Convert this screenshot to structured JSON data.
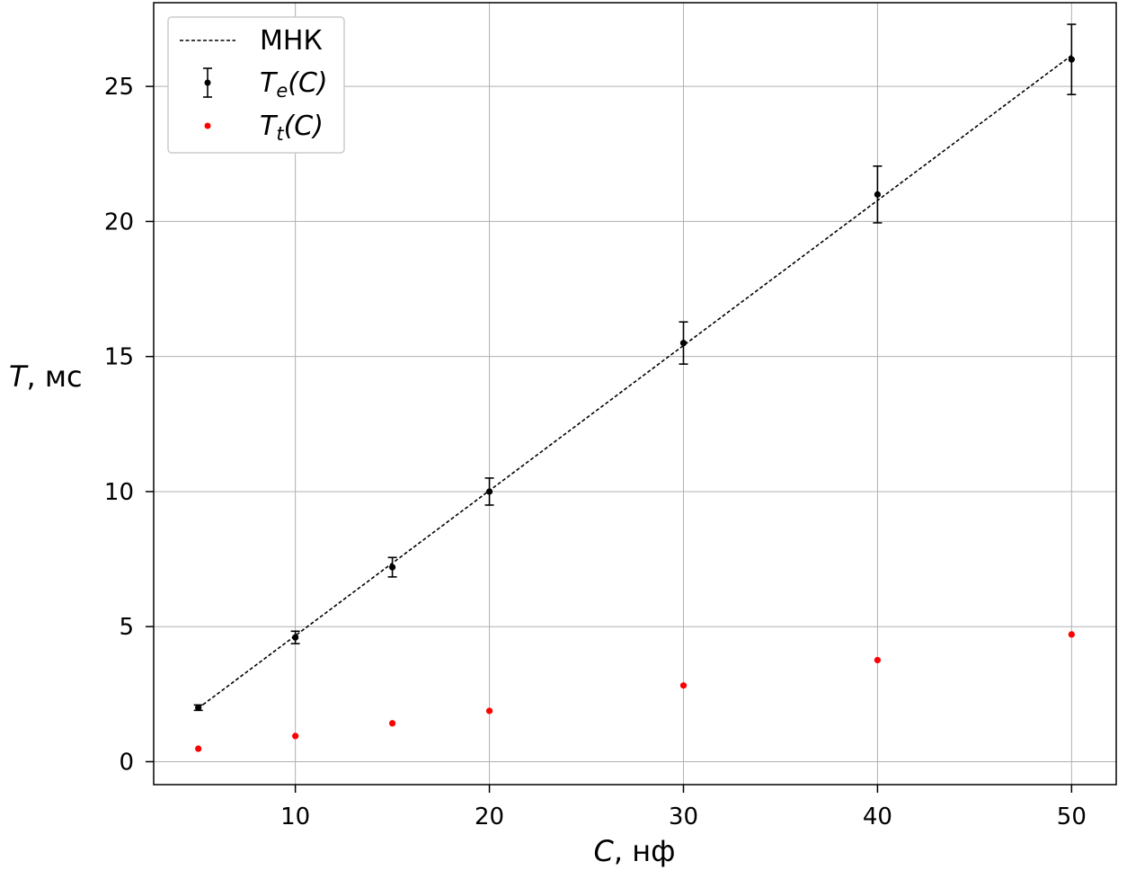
{
  "chart_data": {
    "type": "scatter",
    "title": "",
    "xlabel": {
      "var": "C",
      "unit": ", нф"
    },
    "ylabel": {
      "var": "T",
      "unit": ", мс"
    },
    "xlim": [
      2.7,
      52.3
    ],
    "ylim": [
      -0.85,
      28.1
    ],
    "xticks": [
      10,
      20,
      30,
      40,
      50
    ],
    "yticks": [
      0,
      5,
      10,
      15,
      20,
      25
    ],
    "grid": true,
    "legend_position": "top-left",
    "legend": [
      {
        "key": "fit",
        "text": "МНК",
        "style": "dashed-line",
        "color": "#000000"
      },
      {
        "key": "te",
        "var": "T",
        "sub": "e",
        "arg": "(C)",
        "style": "errorbar-point",
        "color": "#000000"
      },
      {
        "key": "tt",
        "var": "T",
        "sub": "t",
        "arg": "(C)",
        "style": "point",
        "color": "#ff0000"
      }
    ],
    "series": [
      {
        "key": "te",
        "color": "#000000",
        "x": [
          5,
          10,
          15,
          20,
          30,
          40,
          50
        ],
        "y": [
          2.0,
          4.6,
          7.2,
          10.0,
          15.5,
          21.0,
          26.0
        ],
        "yerr": [
          0.1,
          0.23,
          0.36,
          0.5,
          0.78,
          1.05,
          1.3
        ]
      },
      {
        "key": "tt",
        "color": "#ff0000",
        "x": [
          5,
          10,
          15,
          20,
          30,
          40,
          50
        ],
        "y": [
          0.48,
          0.95,
          1.42,
          1.88,
          2.82,
          3.76,
          4.71
        ]
      }
    ],
    "fit": {
      "key": "fit",
      "color": "#000000",
      "x": [
        5,
        50
      ],
      "y": [
        1.98,
        26.15
      ]
    }
  }
}
